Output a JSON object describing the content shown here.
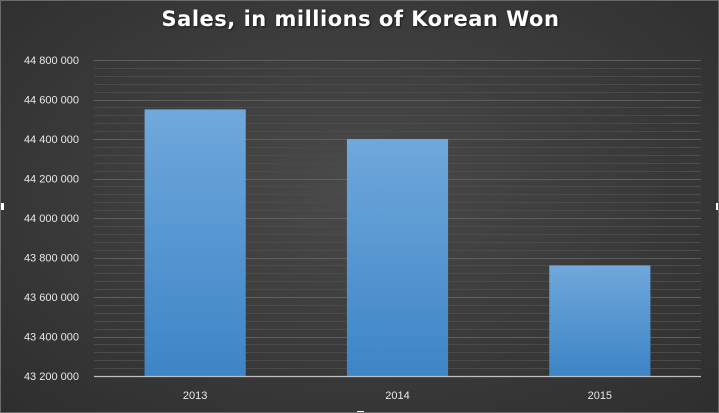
{
  "chart_data": {
    "type": "bar",
    "title": "Sales, in millions of Korean Won",
    "xlabel": "",
    "ylabel": "",
    "categories": [
      "2013",
      "2014",
      "2015"
    ],
    "series": [
      {
        "values": [
          44550000,
          44400000,
          43760000
        ]
      }
    ],
    "ylim": [
      43200000,
      44800000
    ],
    "yticks": [
      43200000,
      43400000,
      43600000,
      43800000,
      44000000,
      44200000,
      44400000,
      44600000,
      44800000
    ],
    "ytick_labels": [
      "43 200 000",
      "43 400 000",
      "43 600 000",
      "43 800 000",
      "44 000 000",
      "44 200 000",
      "44 400 000",
      "44 600 000",
      "44 800 000"
    ],
    "grid": true,
    "legend": "none",
    "colors": {
      "bar_top": "#6fa8dc",
      "bar_bottom": "#3d85c6",
      "background": "#3a3a3a",
      "gridline": "#5a5a5a",
      "text": "#e8e8e8"
    }
  }
}
